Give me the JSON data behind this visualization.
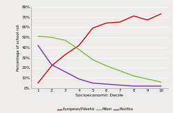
{
  "x": [
    1,
    2,
    3,
    4,
    5,
    6,
    7,
    8,
    9,
    10
  ],
  "european": [
    5,
    22,
    33,
    42,
    59,
    64,
    65,
    71,
    67,
    73
  ],
  "maori": [
    51,
    50,
    47,
    38,
    28,
    22,
    17,
    12,
    9,
    6
  ],
  "pasifika": [
    42,
    23,
    16,
    9,
    5,
    4,
    3,
    2,
    2,
    2
  ],
  "european_color": "#cc0000",
  "maori_color": "#7ab648",
  "pasifika_color": "#7030a0",
  "xlabel": "Socioeconomic Decile",
  "ylabel": "Percentage of school roll",
  "ylim": [
    0,
    80
  ],
  "yticks": [
    0,
    10,
    20,
    30,
    40,
    50,
    60,
    70,
    80
  ],
  "xticks": [
    1,
    2,
    3,
    4,
    5,
    6,
    7,
    8,
    9,
    10
  ],
  "legend_labels": [
    "European/Pākehā",
    "Māori",
    "Pasifika"
  ],
  "bg_color": "#edecea"
}
